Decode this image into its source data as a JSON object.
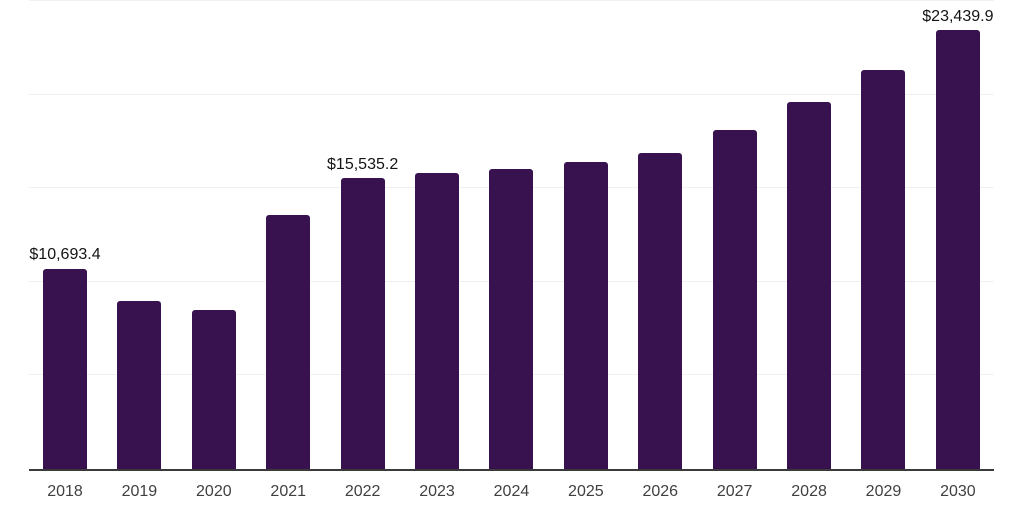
{
  "chart_data": {
    "type": "bar",
    "title": "",
    "xlabel": "",
    "ylabel": "",
    "categories": [
      "2018",
      "2019",
      "2020",
      "2021",
      "2022",
      "2023",
      "2024",
      "2025",
      "2026",
      "2027",
      "2028",
      "2029",
      "2030"
    ],
    "values": [
      10693.4,
      8950,
      8470,
      13590,
      15535.2,
      15820,
      16030,
      16410,
      16890,
      18130,
      19590,
      21340,
      23439.9
    ],
    "data_labels": {
      "2018": "$10,693.4",
      "2022": "$15,535.2",
      "2030": "$23,439.9"
    },
    "ylim": [
      0,
      25000
    ],
    "ytick_step": 5000,
    "y_axis_labels_visible": false,
    "grid": "horizontal",
    "legend": "none",
    "bar_color": "#38124E",
    "gridline_color": "#f0f0f1",
    "axis_line_color": "#3a3a3a",
    "tick_label_color": "#404040",
    "data_label_color": "#141414",
    "background_color": "#ffffff"
  }
}
